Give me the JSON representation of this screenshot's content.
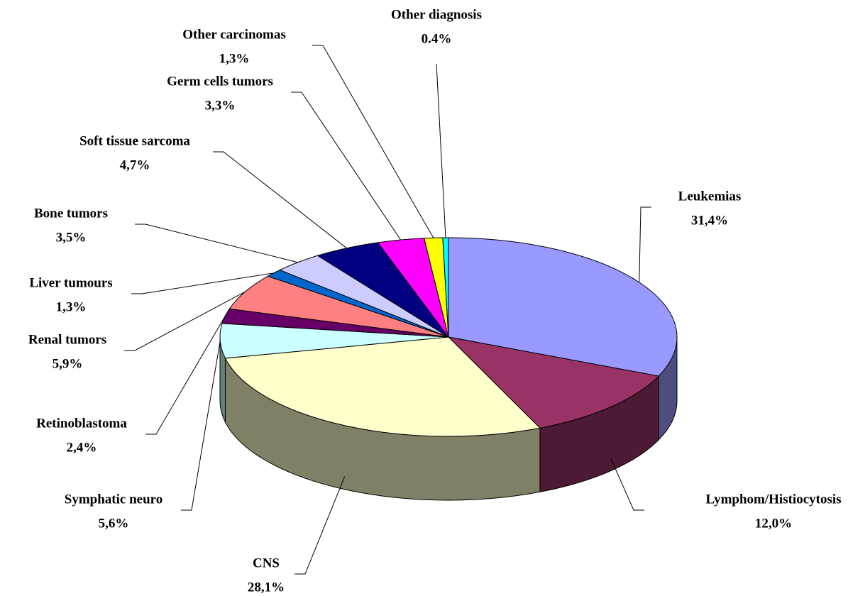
{
  "chart_data": {
    "type": "pie",
    "categories": [
      "Leukemias",
      "Lymphom/Histiocytosis",
      "CNS",
      "Symphatic neuro",
      "Retinoblastoma",
      "Renal tumors",
      "Liver tumours",
      "Bone tumors",
      "Soft tissue sarcoma",
      "Germ cells tumors",
      "Other carcinomas",
      "Other diagnosis"
    ],
    "values": [
      31.4,
      12.0,
      28.1,
      5.6,
      2.4,
      5.9,
      1.3,
      3.5,
      4.7,
      3.3,
      1.3,
      0.4
    ],
    "value_labels": [
      "31,4%",
      "12,0%",
      "28,1%",
      "5,6%",
      "2,4%",
      "5,9%",
      "1,3%",
      "3,5%",
      "4,7%",
      "3,3%",
      "1,3%",
      "0.4%"
    ],
    "colors": [
      "#9999ff",
      "#993366",
      "#ffffcc",
      "#ccffff",
      "#660066",
      "#ff8080",
      "#0066cc",
      "#ccccff",
      "#000080",
      "#ff00ff",
      "#ffff00",
      "#00ffff"
    ]
  }
}
